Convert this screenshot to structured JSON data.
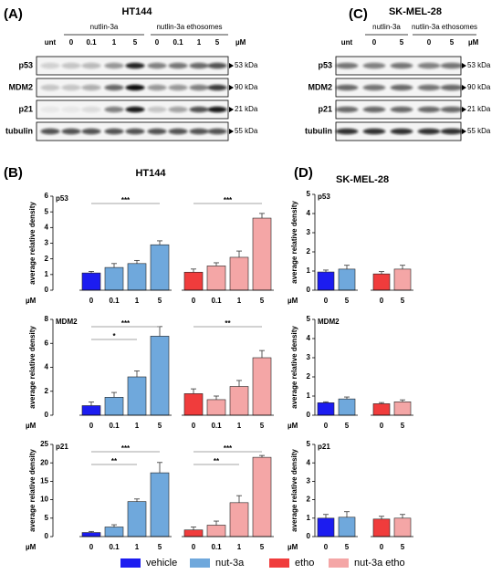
{
  "blots": [
    {
      "panel": "(A)",
      "title": "HT144",
      "groups": [
        "nutlin-3a",
        "nutlin-3a ethosomes"
      ],
      "lanes": [
        "unt",
        "0",
        "0.1",
        "1",
        "5",
        "0",
        "0.1",
        "1",
        "5"
      ],
      "unit": "µM",
      "rows": [
        {
          "name": "p53",
          "size": "53 kDa"
        },
        {
          "name": "MDM2",
          "size": "90 kDa"
        },
        {
          "name": "p21",
          "size": "21 kDa"
        },
        {
          "name": "tubulin",
          "size": "55 kDa"
        }
      ]
    },
    {
      "panel": "(C)",
      "title": "SK-MEL-28",
      "groups": [
        "nutlin-3a",
        "nutlin-3a ethosomes"
      ],
      "lanes": [
        "unt",
        "0",
        "5",
        "0",
        "5"
      ],
      "unit": "µM",
      "rows": [
        {
          "name": "p53",
          "size": "53 kDa"
        },
        {
          "name": "MDM2",
          "size": "90 kDa"
        },
        {
          "name": "p21",
          "size": "21 kDa"
        },
        {
          "name": "tubulin",
          "size": "55 kDa"
        }
      ]
    }
  ],
  "panels": [
    {
      "label": "(B)",
      "title": "HT144"
    },
    {
      "label": "(D)",
      "title": "SK-MEL-28"
    }
  ],
  "legend": [
    {
      "name": "vehicle",
      "color": "#1c1cf0"
    },
    {
      "name": "nut-3a",
      "color": "#6fa8dc"
    },
    {
      "name": "etho",
      "color": "#f03c3c"
    },
    {
      "name": "nut-3a etho",
      "color": "#f4a6a6"
    }
  ],
  "chart_data": [
    {
      "type": "bar",
      "title": "p53",
      "ylabel": "average relative density",
      "xlabel": "µM",
      "categories": [
        "0",
        "0.1",
        "1",
        "5",
        "0",
        "0.1",
        "1",
        "5"
      ],
      "values": [
        1.1,
        1.45,
        1.7,
        2.9,
        1.15,
        1.55,
        2.1,
        4.6
      ],
      "errors": [
        0.1,
        0.25,
        0.2,
        0.25,
        0.2,
        0.2,
        0.4,
        0.3
      ],
      "colors": [
        "#1c1cf0",
        "#6fa8dc",
        "#6fa8dc",
        "#6fa8dc",
        "#f03c3c",
        "#f4a6a6",
        "#f4a6a6",
        "#f4a6a6"
      ],
      "ylim": [
        0,
        6
      ],
      "yticks": [
        0,
        1,
        2,
        3,
        4,
        5,
        6
      ],
      "significance": [
        {
          "from": 0,
          "to": 3,
          "label": "***"
        },
        {
          "from": 4,
          "to": 7,
          "label": "***"
        }
      ]
    },
    {
      "type": "bar",
      "title": "MDM2",
      "ylabel": "average relative density",
      "xlabel": "µM",
      "categories": [
        "0",
        "0.1",
        "1",
        "5",
        "0",
        "0.1",
        "1",
        "5"
      ],
      "values": [
        0.8,
        1.5,
        3.2,
        6.6,
        1.8,
        1.3,
        2.4,
        4.8
      ],
      "errors": [
        0.3,
        0.4,
        0.5,
        0.8,
        0.4,
        0.3,
        0.5,
        0.6
      ],
      "colors": [
        "#1c1cf0",
        "#6fa8dc",
        "#6fa8dc",
        "#6fa8dc",
        "#f03c3c",
        "#f4a6a6",
        "#f4a6a6",
        "#f4a6a6"
      ],
      "ylim": [
        0,
        8
      ],
      "yticks": [
        0,
        2,
        4,
        6,
        8
      ],
      "significance": [
        {
          "from": 0,
          "to": 3,
          "label": "***"
        },
        {
          "from": 0,
          "to": 2,
          "label": "*"
        },
        {
          "from": 4,
          "to": 7,
          "label": "**"
        }
      ]
    },
    {
      "type": "bar",
      "title": "p21",
      "ylabel": "average relative density",
      "xlabel": "µM",
      "categories": [
        "0",
        "0.1",
        "1",
        "5",
        "0",
        "0.1",
        "1",
        "5"
      ],
      "values": [
        1.1,
        2.6,
        9.5,
        17.3,
        1.8,
        3.1,
        9.2,
        21.5
      ],
      "errors": [
        0.3,
        0.6,
        0.7,
        2.8,
        0.8,
        1.1,
        1.9,
        0.5
      ],
      "colors": [
        "#1c1cf0",
        "#6fa8dc",
        "#6fa8dc",
        "#6fa8dc",
        "#f03c3c",
        "#f4a6a6",
        "#f4a6a6",
        "#f4a6a6"
      ],
      "ylim": [
        0,
        25
      ],
      "yticks": [
        0,
        5,
        10,
        15,
        20,
        25
      ],
      "significance": [
        {
          "from": 0,
          "to": 3,
          "label": "***"
        },
        {
          "from": 0,
          "to": 2,
          "label": "**"
        },
        {
          "from": 4,
          "to": 7,
          "label": "***"
        },
        {
          "from": 4,
          "to": 6,
          "label": "**"
        }
      ]
    },
    {
      "type": "bar",
      "title": "p53",
      "ylabel": "average relative density",
      "xlabel": "µM",
      "categories": [
        "0",
        "5",
        "0",
        "5"
      ],
      "values": [
        0.95,
        1.1,
        0.85,
        1.1
      ],
      "errors": [
        0.1,
        0.2,
        0.12,
        0.2
      ],
      "colors": [
        "#1c1cf0",
        "#6fa8dc",
        "#f03c3c",
        "#f4a6a6"
      ],
      "ylim": [
        0,
        5
      ],
      "yticks": [
        0,
        1,
        2,
        3,
        4,
        5
      ],
      "significance": []
    },
    {
      "type": "bar",
      "title": "MDM2",
      "ylabel": "average relative density",
      "xlabel": "µM",
      "categories": [
        "0",
        "5",
        "0",
        "5"
      ],
      "values": [
        0.65,
        0.85,
        0.6,
        0.7
      ],
      "errors": [
        0.05,
        0.1,
        0.06,
        0.1
      ],
      "colors": [
        "#1c1cf0",
        "#6fa8dc",
        "#f03c3c",
        "#f4a6a6"
      ],
      "ylim": [
        0,
        5
      ],
      "yticks": [
        0,
        1,
        2,
        3,
        4,
        5
      ],
      "significance": []
    },
    {
      "type": "bar",
      "title": "p21",
      "ylabel": "average relative density",
      "xlabel": "µM",
      "categories": [
        "0",
        "5",
        "0",
        "5"
      ],
      "values": [
        1.0,
        1.05,
        0.95,
        1.0
      ],
      "errors": [
        0.2,
        0.3,
        0.15,
        0.2
      ],
      "colors": [
        "#1c1cf0",
        "#6fa8dc",
        "#f03c3c",
        "#f4a6a6"
      ],
      "ylim": [
        0,
        5
      ],
      "yticks": [
        0,
        1,
        2,
        3,
        4,
        5
      ],
      "significance": []
    }
  ]
}
